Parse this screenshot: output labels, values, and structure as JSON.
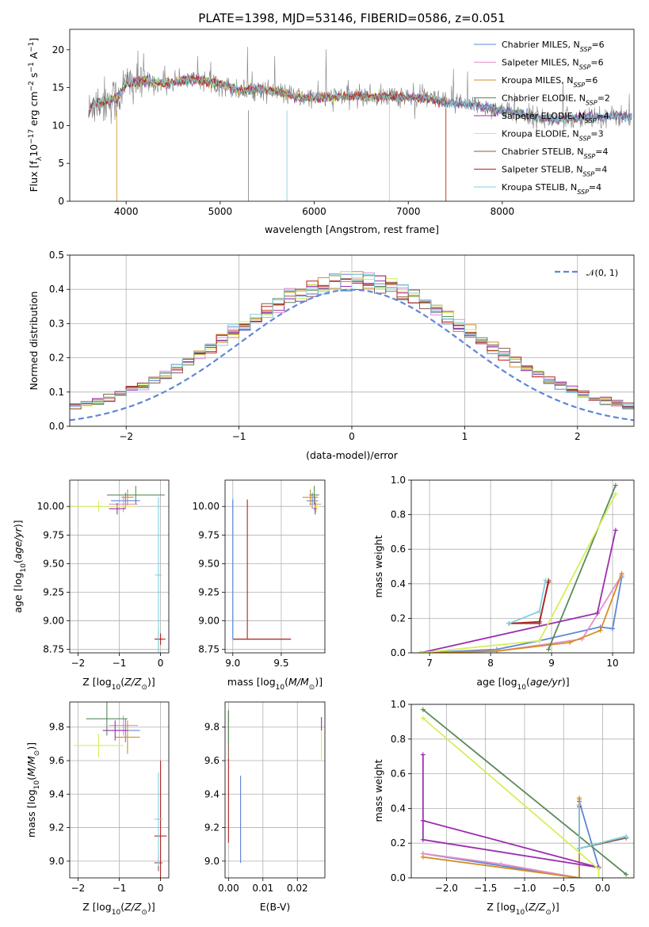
{
  "figure_title": "PLATE=1398, MJD=53146, FIBERID=0586, z=0.051",
  "models": [
    {
      "name": "Chabrier MILES",
      "nssp": "6",
      "color": "#5f86d8"
    },
    {
      "name": "Salpeter MILES",
      "nssp": "6",
      "color": "#e48fcb"
    },
    {
      "name": "Kroupa MILES",
      "nssp": "6",
      "color": "#d38f25"
    },
    {
      "name": "Chabrier ELODIE",
      "nssp": "2",
      "color": "#5a8a5a"
    },
    {
      "name": "Salpeter ELODIE",
      "nssp": "4",
      "color": "#9b2fae"
    },
    {
      "name": "Kroupa ELODIE",
      "nssp": "3",
      "color": "#d4ef5a"
    },
    {
      "name": "Chabrier STELIB",
      "nssp": "4",
      "color": "#8b5a4a"
    },
    {
      "name": "Salpeter STELIB",
      "nssp": "4",
      "color": "#b22222"
    },
    {
      "name": "Kroupa STELIB",
      "nssp": "4",
      "color": "#7fd1de"
    }
  ],
  "legend_nssp_prefix": "N",
  "legend_nssp_sub": "SSP",
  "chart_data": [
    {
      "id": "spectrum",
      "type": "line",
      "xlabel": "wavelength [Angstrom, rest frame]",
      "ylabel": "Flux [f",
      "ylabel_sub": "λ",
      "ylabel_rest": "10",
      "ylabel_exp": "−17",
      "ylabel_units": " erg cm",
      "ylabel_units_exp": "−2",
      "ylabel_s": " s",
      "ylabel_s_exp": "−1",
      "ylabel_A": " A",
      "ylabel_A_exp": "−1",
      "ylabel_close": "]",
      "xlim": [
        3400,
        9400
      ],
      "ylim": [
        0,
        22.7
      ],
      "xticks": [
        4000,
        5000,
        6000,
        7000,
        8000
      ],
      "yticks": [
        0,
        5,
        10,
        15,
        20
      ],
      "legend": "upper right",
      "grid": false,
      "data_shape": [
        [
          3600,
          11.5
        ],
        [
          3650,
          13
        ],
        [
          3900,
          13.5
        ],
        [
          4000,
          15.5
        ],
        [
          4200,
          15.8
        ],
        [
          4400,
          15.5
        ],
        [
          4600,
          16
        ],
        [
          4800,
          16
        ],
        [
          5000,
          15.5
        ],
        [
          5200,
          14.6
        ],
        [
          5400,
          14.8
        ],
        [
          5600,
          14.5
        ],
        [
          5800,
          13.8
        ],
        [
          6000,
          13.6
        ],
        [
          6200,
          13.8
        ],
        [
          6400,
          13.9
        ],
        [
          6600,
          13.8
        ],
        [
          6800,
          13.8
        ],
        [
          7000,
          13.7
        ],
        [
          7200,
          13.6
        ],
        [
          7400,
          13
        ],
        [
          7600,
          12.8
        ],
        [
          7800,
          12.5
        ],
        [
          8000,
          12
        ],
        [
          8200,
          11.5
        ],
        [
          8400,
          11
        ],
        [
          8600,
          10.8
        ],
        [
          8800,
          11
        ],
        [
          9000,
          11.2
        ]
      ],
      "model_ends": [
        9380,
        6800,
        7400,
        9380,
        9380,
        6800,
        9380,
        7400,
        9380
      ]
    },
    {
      "id": "residuals",
      "type": "histogram",
      "xlabel": "(data-model)/error",
      "ylabel": "Normed distribution",
      "xlim": [
        -2.5,
        2.5
      ],
      "ylim": [
        0,
        0.5
      ],
      "xticks": [
        -2,
        -1,
        0,
        1,
        2
      ],
      "yticks": [
        0,
        0.1,
        0.2,
        0.3,
        0.4,
        0.5
      ],
      "legend_label": "𝒩(0, 1)",
      "legend": "upper right",
      "grid": true,
      "gaussian": {
        "mean": 0,
        "sigma": 1
      }
    },
    {
      "id": "age_vs_Z",
      "type": "errorbar",
      "xlabel": "Z [log",
      "xlabel_sub": "10",
      "xlabel_rest": "(Z/Z",
      "xlabel_sun": "⊙",
      "xlabel_close": ")]",
      "ylabel": "age  [log",
      "ylabel_sub": "10",
      "ylabel_rest": "(age/yr)]",
      "xlim": [
        -2.2,
        0.2
      ],
      "ylim": [
        8.72,
        10.23
      ],
      "xticks": [
        -2,
        -1,
        0
      ],
      "yticks": [
        8.75,
        9.0,
        9.25,
        9.5,
        9.75,
        10.0
      ],
      "grid": true,
      "points": [
        {
          "model": 0,
          "x": -0.85,
          "xerr": 0.35,
          "y": 10.05,
          "yerr": 0.07
        },
        {
          "model": 1,
          "x": -0.9,
          "xerr": 0.35,
          "y": 10.02,
          "yerr": 0.07
        },
        {
          "model": 2,
          "x": -0.8,
          "xerr": 0.15,
          "y": 10.08,
          "yerr": 0.07
        },
        {
          "model": 3,
          "x": -0.6,
          "xerr": 0.7,
          "y": 10.1,
          "yerr": 0.08
        },
        {
          "model": 4,
          "x": -1.05,
          "xerr": 0.2,
          "y": 9.98,
          "yerr": 0.05
        },
        {
          "model": 5,
          "x": -1.5,
          "xerr": 0.9,
          "y": 10.0,
          "yerr": 0.05
        },
        {
          "model": 6,
          "x": -0.05,
          "xerr": 0.1,
          "y": 8.84,
          "yerr": 0.08
        },
        {
          "model": 7,
          "x": 0.0,
          "xerr": 0.12,
          "y": 8.84,
          "yerr": 0.05
        },
        {
          "model": 8,
          "x": -0.05,
          "xerr": 0.08,
          "y": 9.4,
          "yerr": 0.68
        }
      ]
    },
    {
      "id": "age_vs_mass",
      "type": "errorbar",
      "xlabel": "mass [log",
      "xlabel_sub": "10",
      "xlabel_rest": "(M/M",
      "xlabel_sun": "⊙",
      "xlabel_close": ")]",
      "xlim": [
        8.92,
        9.95
      ],
      "ylim": [
        8.72,
        10.23
      ],
      "xticks": [
        9.0,
        9.5
      ],
      "yticks": [
        8.75,
        9.0,
        9.25,
        9.5,
        9.75,
        10.0
      ],
      "grid": true,
      "points": [
        {
          "model": 0,
          "x": 9.82,
          "xerr": 0.06,
          "y": 10.05,
          "yerr": 0.07
        },
        {
          "model": 1,
          "x": 9.85,
          "xerr": 0.06,
          "y": 10.02,
          "yerr": 0.07
        },
        {
          "model": 2,
          "x": 9.8,
          "xerr": 0.08,
          "y": 10.08,
          "yerr": 0.07
        },
        {
          "model": 3,
          "x": 9.84,
          "xerr": 0.05,
          "y": 10.1,
          "yerr": 0.08
        },
        {
          "model": 4,
          "x": 9.85,
          "xerr": 0.02,
          "y": 9.98,
          "yerr": 0.05
        },
        {
          "model": 5,
          "x": 9.86,
          "xerr": 0.04,
          "y": 10.0,
          "yerr": 0.05
        },
        {
          "model": 6,
          "x": 9.3,
          "xerr": 0.3,
          "y": 8.84,
          "yerr": 0.0
        },
        {
          "model": 7,
          "x": 9.3,
          "xerr": 0.3,
          "y": 8.84,
          "yerr": 0.0
        },
        {
          "model": 8,
          "x": 9.0,
          "xerr": 0.0,
          "y": 9.45,
          "yerr": 0.63
        }
      ],
      "extra_lines": [
        {
          "model": 7,
          "x1": 9.15,
          "y1": 8.84,
          "x2": 9.15,
          "y2": 10.06
        },
        {
          "model": 0,
          "x1": 9.0,
          "y1": 8.84,
          "x2": 9.0,
          "y2": 10.06
        }
      ]
    },
    {
      "id": "weight_vs_age",
      "type": "line",
      "xlabel": "age  [log",
      "xlabel_sub": "10",
      "xlabel_rest": "(age/yr)]",
      "ylabel": "mass weight",
      "xlim": [
        6.7,
        10.35
      ],
      "ylim": [
        0,
        1.0
      ],
      "xticks": [
        7,
        8,
        9,
        10
      ],
      "yticks": [
        0.0,
        0.2,
        0.4,
        0.6,
        0.8,
        1.0
      ],
      "grid": true,
      "series": [
        {
          "model": 0,
          "x": [
            6.85,
            8.1,
            8.8,
            9.8,
            10.0,
            10.15
          ],
          "y": [
            0.0,
            0.02,
            0.07,
            0.15,
            0.14,
            0.44
          ]
        },
        {
          "model": 1,
          "x": [
            6.85,
            8.1,
            9.5,
            10.15
          ],
          "y": [
            0.0,
            0.01,
            0.08,
            0.45
          ]
        },
        {
          "model": 2,
          "x": [
            6.85,
            8.1,
            9.3,
            9.8,
            10.15
          ],
          "y": [
            0.0,
            0.01,
            0.06,
            0.13,
            0.46
          ]
        },
        {
          "model": 3,
          "x": [
            8.95,
            10.05
          ],
          "y": [
            0.02,
            0.97
          ]
        },
        {
          "model": 4,
          "x": [
            6.85,
            9.75,
            10.05
          ],
          "y": [
            0.0,
            0.23,
            0.71
          ]
        },
        {
          "model": 5,
          "x": [
            6.85,
            8.8,
            10.05
          ],
          "y": [
            0.0,
            0.07,
            0.92
          ]
        },
        {
          "model": 6,
          "x": [
            8.3,
            8.8,
            8.95
          ],
          "y": [
            0.17,
            0.17,
            0.42
          ]
        },
        {
          "model": 7,
          "x": [
            8.3,
            8.8,
            8.95
          ],
          "y": [
            0.17,
            0.18,
            0.41
          ]
        },
        {
          "model": 8,
          "x": [
            8.3,
            8.8,
            8.9
          ],
          "y": [
            0.17,
            0.24,
            0.42
          ]
        }
      ]
    },
    {
      "id": "mass_vs_Z",
      "type": "errorbar",
      "xlabel": "Z [log",
      "xlabel_sub": "10",
      "xlabel_rest": "(Z/Z",
      "xlabel_sun": "⊙",
      "xlabel_close": ")]",
      "ylabel": "mass [log",
      "ylabel_sub": "10",
      "ylabel_rest": "(M/M",
      "ylabel_sun": "⊙",
      "ylabel_close": ")]",
      "xlim": [
        -2.2,
        0.2
      ],
      "ylim": [
        8.9,
        9.95
      ],
      "xticks": [
        -2,
        -1,
        0
      ],
      "yticks": [
        9.0,
        9.2,
        9.4,
        9.6,
        9.8
      ],
      "grid": true,
      "points": [
        {
          "model": 0,
          "x": -0.85,
          "xerr": 0.35,
          "y": 9.78,
          "yerr": 0.07
        },
        {
          "model": 1,
          "x": -0.9,
          "xerr": 0.35,
          "y": 9.81,
          "yerr": 0.06
        },
        {
          "model": 2,
          "x": -0.8,
          "xerr": 0.3,
          "y": 9.74,
          "yerr": 0.1
        },
        {
          "model": 3,
          "x": -1.3,
          "xerr": 0.5,
          "y": 9.85,
          "yerr": 0.1
        },
        {
          "model": 4,
          "x": -1.1,
          "xerr": 0.3,
          "y": 9.78,
          "yerr": 0.06
        },
        {
          "model": 5,
          "x": -1.5,
          "xerr": 0.6,
          "y": 9.69,
          "yerr": 0.07
        },
        {
          "model": 6,
          "x": -0.05,
          "xerr": 0.1,
          "y": 8.99,
          "yerr": 0.05
        },
        {
          "model": 7,
          "x": 0.0,
          "xerr": 0.15,
          "y": 9.15,
          "yerr": 0.45
        },
        {
          "model": 8,
          "x": -0.05,
          "xerr": 0.1,
          "y": 9.25,
          "yerr": 0.28
        }
      ]
    },
    {
      "id": "mass_vs_EBV",
      "type": "errorbar",
      "xlabel": "E(B-V)",
      "xlim": [
        -0.001,
        0.028
      ],
      "ylim": [
        8.9,
        9.95
      ],
      "xticks": [
        0.0,
        0.01,
        0.02
      ],
      "yticks": [
        9.0,
        9.2,
        9.4,
        9.6,
        9.8
      ],
      "grid": true,
      "points": [
        {
          "model": 6,
          "x": 0.0,
          "xerr": 0,
          "y": 9.75,
          "yerr": 0.15
        },
        {
          "model": 7,
          "x": 0.0,
          "xerr": 0,
          "y": 9.36,
          "yerr": 0.25
        },
        {
          "model": 3,
          "x": 0.0,
          "xerr": 0,
          "y": 9.8,
          "yerr": 0.1
        },
        {
          "model": 8,
          "x": 0.0035,
          "xerr": 0,
          "y": 9.25,
          "yerr": 0.26
        },
        {
          "model": 0,
          "x": 0.0035,
          "xerr": 0,
          "y": 9.25,
          "yerr": 0.26
        },
        {
          "model": 5,
          "x": 0.027,
          "xerr": 0,
          "y": 9.72,
          "yerr": 0.12
        },
        {
          "model": 4,
          "x": 0.027,
          "xerr": 0,
          "y": 9.82,
          "yerr": 0.04
        }
      ]
    },
    {
      "id": "weight_vs_Z",
      "type": "line",
      "xlabel": "Z [log",
      "xlabel_sub": "10",
      "xlabel_rest": "(Z/Z",
      "xlabel_sun": "⊙",
      "xlabel_close": ")]",
      "ylabel": "mass weight",
      "xlim": [
        -2.45,
        0.4
      ],
      "ylim": [
        0,
        1.0
      ],
      "xticks": [
        -2.0,
        -1.5,
        -1.0,
        -0.5,
        0.0
      ],
      "yticks": [
        0.0,
        0.2,
        0.4,
        0.6,
        0.8,
        1.0
      ],
      "grid": true,
      "series": [
        {
          "model": 0,
          "x": [
            -2.3,
            -0.3,
            -0.3,
            -0.05
          ],
          "y": [
            0.14,
            0.0,
            0.44,
            0.06
          ]
        },
        {
          "model": 1,
          "x": [
            -2.3,
            -1.3,
            -0.3,
            -0.3
          ],
          "y": [
            0.14,
            0.08,
            0.0,
            0.45
          ]
        },
        {
          "model": 2,
          "x": [
            -2.3,
            -0.3,
            -0.3
          ],
          "y": [
            0.12,
            0.0,
            0.46
          ]
        },
        {
          "model": 3,
          "x": [
            -2.3,
            0.3
          ],
          "y": [
            0.97,
            0.02
          ]
        },
        {
          "model": 4,
          "x": [
            -2.3,
            -2.3,
            -0.05,
            -2.3
          ],
          "y": [
            0.71,
            0.22,
            0.06,
            0.33
          ]
        },
        {
          "model": 5,
          "x": [
            -2.3,
            -0.05,
            -0.05
          ],
          "y": [
            0.92,
            0.05,
            0.0
          ]
        },
        {
          "model": 6,
          "x": [
            -0.3,
            -0.3,
            0.3
          ],
          "y": [
            0.42,
            0.17,
            0.23
          ]
        },
        {
          "model": 7,
          "x": [
            -0.3,
            -0.3
          ],
          "y": [
            0.41,
            0.17
          ]
        },
        {
          "model": 8,
          "x": [
            -0.3,
            -0.3,
            0.3
          ],
          "y": [
            0.42,
            0.17,
            0.24
          ]
        }
      ]
    }
  ]
}
